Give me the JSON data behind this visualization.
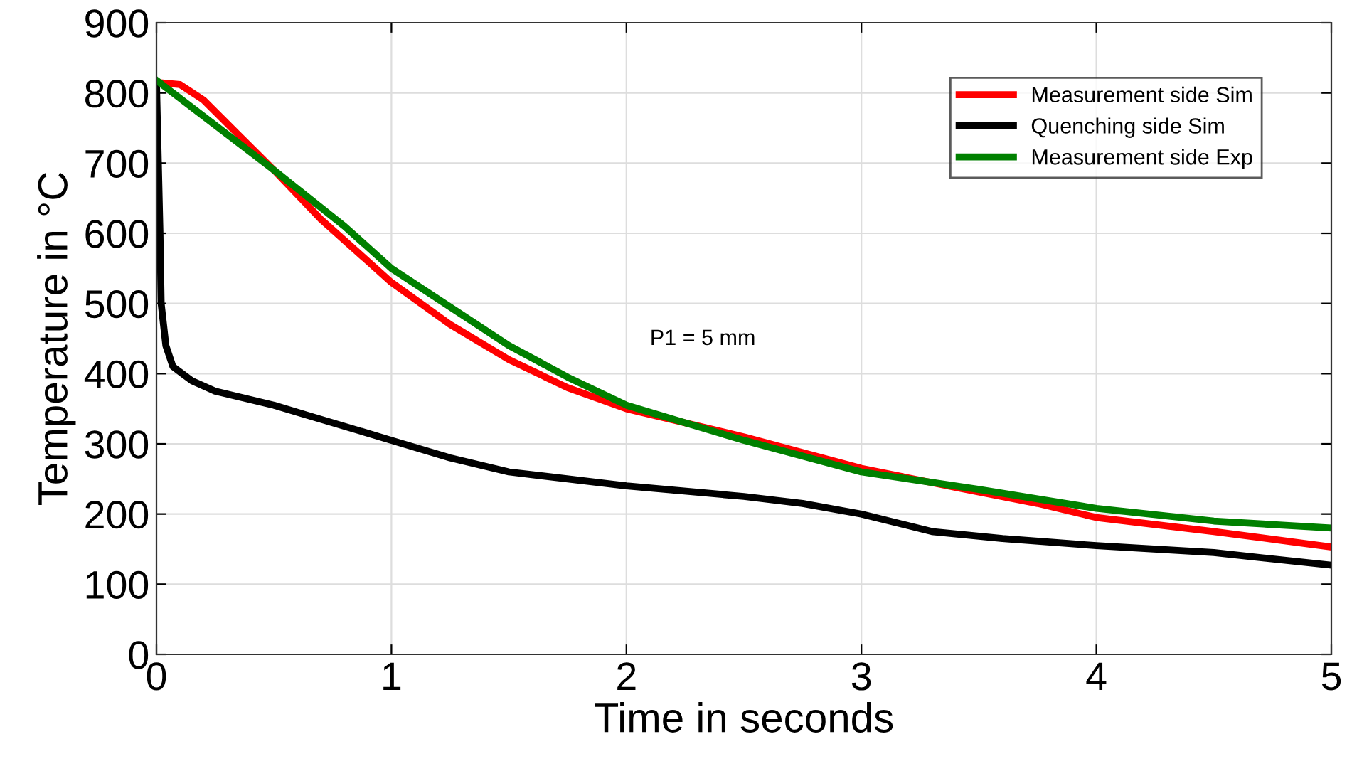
{
  "chart_data": {
    "type": "line",
    "xlabel": "Time in seconds",
    "ylabel": "Temperature in °C",
    "xlim": [
      0,
      5
    ],
    "xticks": [
      0,
      1,
      2,
      3,
      4,
      5
    ],
    "ylim": [
      0,
      900
    ],
    "yticks": [
      0,
      100,
      200,
      300,
      400,
      500,
      600,
      700,
      800,
      900
    ],
    "grid": true,
    "legend": "top right",
    "annotations": [
      "P1 = 5 mm"
    ],
    "series": [
      {
        "name": "Measurement side Sim",
        "color": "#ff0000",
        "x": [
          0,
          0.1,
          0.2,
          0.35,
          0.5,
          0.7,
          1.0,
          1.25,
          1.5,
          1.75,
          2.0,
          2.5,
          3.0,
          3.4,
          3.75,
          4.0,
          4.5,
          5.0
        ],
        "values": [
          815,
          812,
          790,
          740,
          690,
          620,
          530,
          470,
          420,
          380,
          350,
          310,
          265,
          238,
          215,
          195,
          175,
          153
        ]
      },
      {
        "name": "Quenching side Sim",
        "color": "#000000",
        "x": [
          0,
          0.015,
          0.02,
          0.04,
          0.07,
          0.15,
          0.25,
          0.5,
          0.65,
          1.0,
          1.25,
          1.5,
          2.0,
          2.5,
          2.75,
          3.0,
          3.3,
          3.6,
          4.0,
          4.5,
          5.0
        ],
        "values": [
          815,
          600,
          500,
          440,
          410,
          390,
          375,
          355,
          340,
          305,
          280,
          260,
          240,
          225,
          215,
          200,
          175,
          165,
          155,
          145,
          127
        ]
      },
      {
        "name": "Measurement side Exp",
        "color": "#008000",
        "x": [
          0,
          0.5,
          0.8,
          1.0,
          1.25,
          1.5,
          1.75,
          2.0,
          2.5,
          3.0,
          3.5,
          4.0,
          4.5,
          5.0
        ],
        "values": [
          818,
          690,
          610,
          550,
          495,
          440,
          395,
          355,
          305,
          260,
          235,
          208,
          190,
          180
        ]
      }
    ]
  }
}
